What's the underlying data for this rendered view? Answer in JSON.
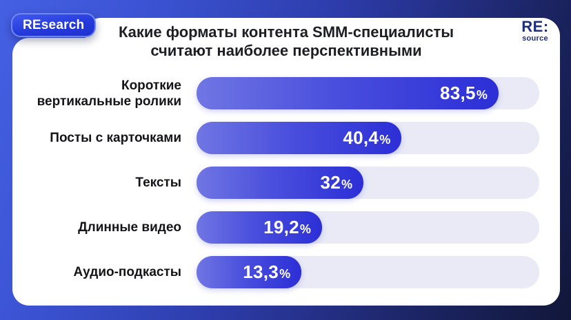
{
  "page": {
    "background_gradient": [
      "#4560e3",
      "#111739"
    ],
    "card_color": "#ffffff"
  },
  "badge": {
    "label": "REsearch",
    "text_color": "#ffffff",
    "fill_start": "#4059ee",
    "fill_end": "#2031cf",
    "border_color": "#6f87f4"
  },
  "logo": {
    "line1": "RE:",
    "line2": "source",
    "color": "#1e2e7e"
  },
  "title": {
    "text": "Какие форматы контента SMM-специалисты считают наиболее перспективными",
    "color": "#1d1e24"
  },
  "chart_data": {
    "type": "bar",
    "orientation": "horizontal",
    "title": "Какие форматы контента SMM-специалисты считают наиболее перспективными",
    "categories": [
      "Короткие вертикальные ролики",
      "Посты с карточками",
      "Тексты",
      "Длинные видео",
      "Аудио-подкасты"
    ],
    "values": [
      83.5,
      40.4,
      32,
      19.2,
      13.3
    ],
    "value_labels": [
      "83,5",
      "40,4",
      "32",
      "19,2",
      "13,3"
    ],
    "unit": "%",
    "xlim": [
      0,
      100
    ],
    "grid": false,
    "legend": false,
    "bar_display_pct": [
      88.1,
      59.8,
      48.7,
      36.6,
      30.6
    ],
    "colors": {
      "bar_gradient_start": "#7076e3",
      "bar_gradient_mid": "#4a4fdd",
      "bar_gradient_end": "#2c2fd6",
      "track": "#e9eaf6",
      "value_text": "#ffffff",
      "label_text": "#141419"
    }
  }
}
